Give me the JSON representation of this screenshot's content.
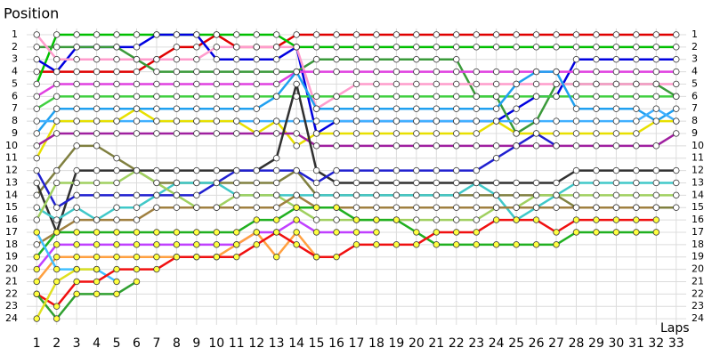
{
  "chart_data": {
    "type": "line",
    "y_label": "Position",
    "x_label": "Laps",
    "x": [
      1,
      2,
      3,
      4,
      5,
      6,
      7,
      8,
      9,
      10,
      11,
      12,
      13,
      14,
      15,
      16,
      17,
      18,
      19,
      20,
      21,
      22,
      23,
      24,
      25,
      26,
      27,
      28,
      29,
      30,
      31,
      32,
      33
    ],
    "xlim": [
      0.5,
      33.5
    ],
    "xticks": [
      1,
      2,
      3,
      4,
      5,
      6,
      7,
      8,
      9,
      10,
      11,
      12,
      13,
      14,
      15,
      16,
      17,
      18,
      19,
      20,
      21,
      22,
      23,
      24,
      25,
      26,
      27,
      28,
      29,
      30,
      31,
      32,
      33
    ],
    "ylim": [
      24.5,
      0.5
    ],
    "yticks": [
      1,
      2,
      3,
      4,
      5,
      6,
      7,
      8,
      9,
      10,
      11,
      12,
      13,
      14,
      15,
      16,
      17,
      18,
      19,
      20,
      21,
      22,
      23,
      24
    ],
    "grid": true,
    "series": [
      {
        "color": "#e00000",
        "marker_color": "#ffffff",
        "values": [
          4,
          4,
          4,
          4,
          4,
          4,
          3,
          2,
          2,
          1,
          2,
          2,
          2,
          1,
          1,
          1,
          1,
          1,
          1,
          1,
          1,
          1,
          1,
          1,
          1,
          1,
          1,
          1,
          1,
          1,
          1,
          1,
          1
        ]
      },
      {
        "color": "#00c000",
        "marker_color": "#ffffff",
        "values": [
          5,
          1,
          1,
          1,
          1,
          1,
          1,
          1,
          1,
          1,
          1,
          1,
          1,
          2,
          2,
          2,
          2,
          2,
          2,
          2,
          2,
          2,
          2,
          2,
          2,
          2,
          2,
          2,
          2,
          2,
          2,
          2,
          2
        ]
      },
      {
        "color": "#0000e0",
        "marker_color": "#ffffff",
        "values": [
          3,
          4,
          2,
          2,
          2,
          2,
          1,
          1,
          1,
          3,
          3,
          3,
          3,
          2,
          9,
          8,
          8,
          8,
          8,
          8,
          8,
          8,
          8,
          8,
          7,
          6,
          6,
          3,
          3,
          3,
          3,
          3,
          3
        ]
      },
      {
        "color": "#3a9a3a",
        "marker_color": "#ffffff",
        "values": [
          2,
          2,
          2,
          2,
          2,
          3,
          4,
          4,
          4,
          4,
          4,
          4,
          4,
          4,
          3,
          3,
          3,
          3,
          3,
          3,
          3,
          3,
          6,
          6,
          9,
          8,
          5,
          5,
          5,
          5,
          5,
          5,
          6
        ]
      },
      {
        "color": "#ff9ccc",
        "marker_color": "#ffffff",
        "values": [
          1,
          3,
          3,
          3,
          3,
          3,
          3,
          3,
          3,
          2,
          2,
          2,
          2,
          2,
          7,
          6,
          5,
          5,
          5,
          5,
          5,
          5,
          5,
          5,
          5,
          5,
          5,
          5,
          5,
          5,
          5,
          5,
          5
        ]
      },
      {
        "color": "#e040e0",
        "marker_color": "#ffffff",
        "values": [
          6,
          5,
          5,
          5,
          5,
          5,
          5,
          5,
          5,
          5,
          5,
          5,
          5,
          4,
          4,
          4,
          4,
          4,
          4,
          4,
          4,
          4,
          4,
          4,
          4,
          4,
          4,
          4,
          4,
          4,
          4,
          4,
          4
        ]
      },
      {
        "color": "#40d040",
        "marker_color": "#ffffff",
        "values": [
          7,
          6,
          6,
          6,
          6,
          6,
          6,
          6,
          6,
          6,
          6,
          6,
          6,
          6,
          6,
          6,
          6,
          6,
          6,
          6,
          6,
          6,
          6,
          6,
          6,
          6,
          6,
          6,
          6,
          6,
          6,
          6,
          6
        ]
      },
      {
        "color": "#20a0f0",
        "marker_color": "#ffffff",
        "values": [
          9,
          7,
          7,
          7,
          7,
          7,
          7,
          7,
          7,
          7,
          7,
          7,
          6,
          4,
          7,
          7,
          7,
          7,
          7,
          7,
          7,
          7,
          7,
          7,
          5,
          4,
          4,
          7,
          7,
          7,
          7,
          8,
          7
        ]
      },
      {
        "color": "#40b0ff",
        "marker_color": "#ffffff",
        "values": [
          8,
          8,
          8,
          8,
          8,
          8,
          8,
          8,
          8,
          8,
          8,
          8,
          8,
          8,
          8,
          8,
          8,
          8,
          8,
          8,
          8,
          8,
          8,
          8,
          8,
          8,
          8,
          8,
          8,
          8,
          8,
          7,
          8
        ]
      },
      {
        "color": "#e8e000",
        "marker_color": "#ffffff",
        "values": [
          11,
          8,
          8,
          8,
          8,
          7,
          8,
          8,
          8,
          8,
          8,
          9,
          8,
          10,
          9,
          9,
          9,
          9,
          9,
          9,
          9,
          9,
          9,
          8,
          9,
          9,
          9,
          9,
          9,
          9,
          9,
          8,
          8
        ]
      },
      {
        "color": "#a020a0",
        "marker_color": "#ffffff",
        "values": [
          10,
          9,
          9,
          9,
          9,
          9,
          9,
          9,
          9,
          9,
          9,
          9,
          9,
          9,
          10,
          10,
          10,
          10,
          10,
          10,
          10,
          10,
          10,
          10,
          10,
          10,
          10,
          10,
          10,
          10,
          10,
          10,
          9
        ]
      },
      {
        "color": "#808040",
        "marker_color": "#ffffff",
        "values": [
          14,
          12,
          10,
          10,
          11,
          12,
          13,
          13,
          13,
          13,
          13,
          13,
          13,
          12,
          14,
          14,
          14,
          14,
          14,
          14,
          14,
          14,
          14,
          14,
          14,
          14,
          14,
          15,
          15,
          15,
          15,
          15,
          15
        ]
      },
      {
        "color": "#303030",
        "marker_color": "#ffffff",
        "values": [
          13,
          17,
          12,
          12,
          12,
          12,
          12,
          12,
          12,
          12,
          12,
          12,
          11,
          5,
          12,
          13,
          13,
          13,
          13,
          13,
          13,
          13,
          13,
          13,
          13,
          13,
          13,
          12,
          12,
          12,
          12,
          12,
          12
        ]
      },
      {
        "color": "#2020d0",
        "marker_color": "#ffffff",
        "values": [
          12,
          15,
          14,
          14,
          14,
          14,
          14,
          14,
          14,
          13,
          12,
          12,
          12,
          12,
          13,
          12,
          12,
          12,
          12,
          12,
          12,
          12,
          12,
          11,
          10,
          9,
          10,
          null,
          null,
          null,
          null,
          null,
          null
        ]
      },
      {
        "color": "#40c8c8",
        "marker_color": "#ffffff",
        "values": [
          15,
          16,
          15,
          16,
          15,
          15,
          14,
          13,
          13,
          13,
          14,
          14,
          14,
          14,
          14,
          14,
          14,
          14,
          14,
          14,
          14,
          14,
          13,
          14,
          16,
          15,
          14,
          13,
          13,
          13,
          13,
          13,
          13
        ]
      },
      {
        "color": "#a0d060",
        "marker_color": "#ffffff",
        "values": [
          16,
          13,
          13,
          13,
          13,
          12,
          13,
          14,
          15,
          15,
          14,
          14,
          14,
          15,
          16,
          16,
          16,
          16,
          16,
          16,
          16,
          16,
          16,
          15,
          15,
          14,
          14,
          14,
          14,
          14,
          14,
          14,
          14
        ]
      },
      {
        "color": "#a08040",
        "marker_color": "#ffffff",
        "values": [
          18,
          17,
          16,
          16,
          16,
          16,
          15,
          15,
          15,
          15,
          15,
          15,
          15,
          14,
          15,
          15,
          15,
          15,
          15,
          15,
          15,
          15,
          15,
          15,
          15,
          15,
          15,
          15,
          15,
          15,
          15,
          15,
          null
        ]
      },
      {
        "color": "#20b020",
        "marker_color": "#ffff40",
        "values": [
          19,
          17,
          17,
          17,
          17,
          17,
          17,
          17,
          17,
          17,
          17,
          16,
          16,
          15,
          15,
          15,
          16,
          16,
          16,
          17,
          18,
          18,
          18,
          18,
          18,
          18,
          18,
          17,
          17,
          17,
          17,
          17,
          null
        ]
      },
      {
        "color": "#c040ff",
        "marker_color": "#ffff40",
        "values": [
          20,
          18,
          18,
          18,
          18,
          18,
          18,
          18,
          18,
          18,
          18,
          17,
          17,
          16,
          17,
          17,
          17,
          17,
          null,
          null,
          null,
          null,
          null,
          null,
          null,
          null,
          null,
          null,
          null,
          null,
          null,
          null,
          null
        ]
      },
      {
        "color": "#ffa040",
        "marker_color": "#ffff40",
        "values": [
          21,
          19,
          19,
          19,
          19,
          19,
          19,
          19,
          19,
          19,
          18,
          17,
          19,
          17,
          19,
          null,
          null,
          null,
          null,
          null,
          null,
          null,
          null,
          null,
          null,
          null,
          null,
          null,
          null,
          null,
          null,
          null,
          null
        ]
      },
      {
        "color": "#40c0ff",
        "marker_color": "#ffff40",
        "values": [
          17,
          20,
          20,
          20,
          21,
          null,
          null,
          null,
          null,
          null,
          null,
          null,
          null,
          null,
          null,
          null,
          null,
          null,
          null,
          null,
          null,
          null,
          null,
          null,
          null,
          null,
          null,
          null,
          null,
          null,
          null,
          null,
          null
        ]
      },
      {
        "color": "#f01010",
        "marker_color": "#ffff40",
        "values": [
          22,
          23,
          21,
          21,
          20,
          20,
          20,
          19,
          19,
          19,
          19,
          18,
          17,
          18,
          19,
          19,
          18,
          18,
          18,
          18,
          17,
          17,
          17,
          16,
          16,
          16,
          17,
          16,
          16,
          16,
          16,
          16,
          null
        ]
      },
      {
        "color": "#30a030",
        "marker_color": "#ffff40",
        "values": [
          22,
          24,
          22,
          22,
          22,
          21,
          null,
          null,
          null,
          null,
          null,
          null,
          null,
          null,
          null,
          null,
          null,
          null,
          null,
          null,
          null,
          null,
          null,
          null,
          null,
          null,
          null,
          null,
          null,
          null,
          null,
          null,
          null
        ]
      },
      {
        "color": "#e0e020",
        "marker_color": "#ffff40",
        "values": [
          24,
          21,
          20,
          20,
          null,
          null,
          null,
          null,
          null,
          null,
          null,
          null,
          null,
          null,
          null,
          null,
          null,
          null,
          null,
          null,
          null,
          null,
          null,
          null,
          null,
          null,
          null,
          null,
          null,
          null,
          null,
          null,
          null
        ]
      }
    ]
  }
}
